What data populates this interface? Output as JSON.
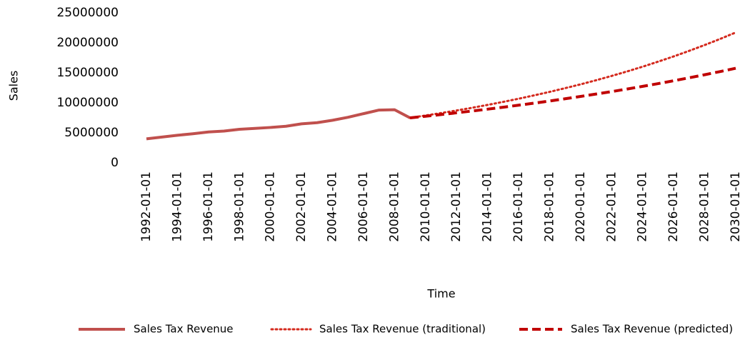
{
  "chart_data": {
    "type": "line",
    "xlabel": "Time",
    "ylabel": "Sales",
    "categories": [
      "1992-01-01",
      null,
      "1994-01-01",
      null,
      "1996-01-01",
      null,
      "1998-01-01",
      null,
      "2000-01-01",
      null,
      "2002-01-01",
      null,
      "2004-01-01",
      null,
      "2006-01-01",
      null,
      "2008-01-01",
      null,
      "2010-01-01",
      null,
      "2012-01-01",
      null,
      "2014-01-01",
      null,
      "2016-01-01",
      null,
      "2018-01-01",
      null,
      "2020-01-01",
      null,
      "2022-01-01",
      null,
      "2024-01-01",
      null,
      "2026-01-01",
      null,
      "2028-01-01",
      null,
      "2030-01-01"
    ],
    "series": [
      {
        "name": "Sales Tax Revenue",
        "color": "#c0504d",
        "style": "solid",
        "values": [
          4000000,
          4300000,
          4600000,
          4850000,
          5150000,
          5300000,
          5600000,
          5750000,
          5900000,
          6100000,
          6500000,
          6700000,
          7100000,
          7600000,
          8200000,
          8800000,
          8850000,
          7500000,
          null,
          null,
          null,
          null,
          null,
          null,
          null,
          null,
          null,
          null,
          null,
          null,
          null,
          null,
          null,
          null,
          null,
          null,
          null,
          null,
          null
        ]
      },
      {
        "name": "Sales Tax Revenue (traditional)",
        "color": "#d42a1e",
        "style": "dotted",
        "values": [
          null,
          null,
          null,
          null,
          null,
          null,
          null,
          null,
          null,
          null,
          null,
          null,
          null,
          null,
          null,
          null,
          null,
          7500000,
          7890000,
          8300000,
          8730000,
          9180000,
          9660000,
          10160000,
          10690000,
          11250000,
          11830000,
          12450000,
          13090000,
          13770000,
          14490000,
          15240000,
          16030000,
          16870000,
          17740000,
          18670000,
          19640000,
          20660000,
          21730000
        ]
      },
      {
        "name": "Sales Tax Revenue (predicted)",
        "color": "#c00000",
        "style": "dashed",
        "values": [
          null,
          null,
          null,
          null,
          null,
          null,
          null,
          null,
          null,
          null,
          null,
          null,
          null,
          null,
          null,
          null,
          null,
          7500000,
          7770000,
          8050000,
          8340000,
          8640000,
          8950000,
          9270000,
          9610000,
          9950000,
          10310000,
          10680000,
          11070000,
          11470000,
          11880000,
          12310000,
          12750000,
          13210000,
          13690000,
          14180000,
          14690000,
          15220000,
          15770000
        ]
      }
    ],
    "ylim": [
      0,
      25000000
    ],
    "yticks": [
      0,
      5000000,
      10000000,
      15000000,
      20000000,
      25000000
    ],
    "grid": false,
    "legend": "bottom"
  }
}
